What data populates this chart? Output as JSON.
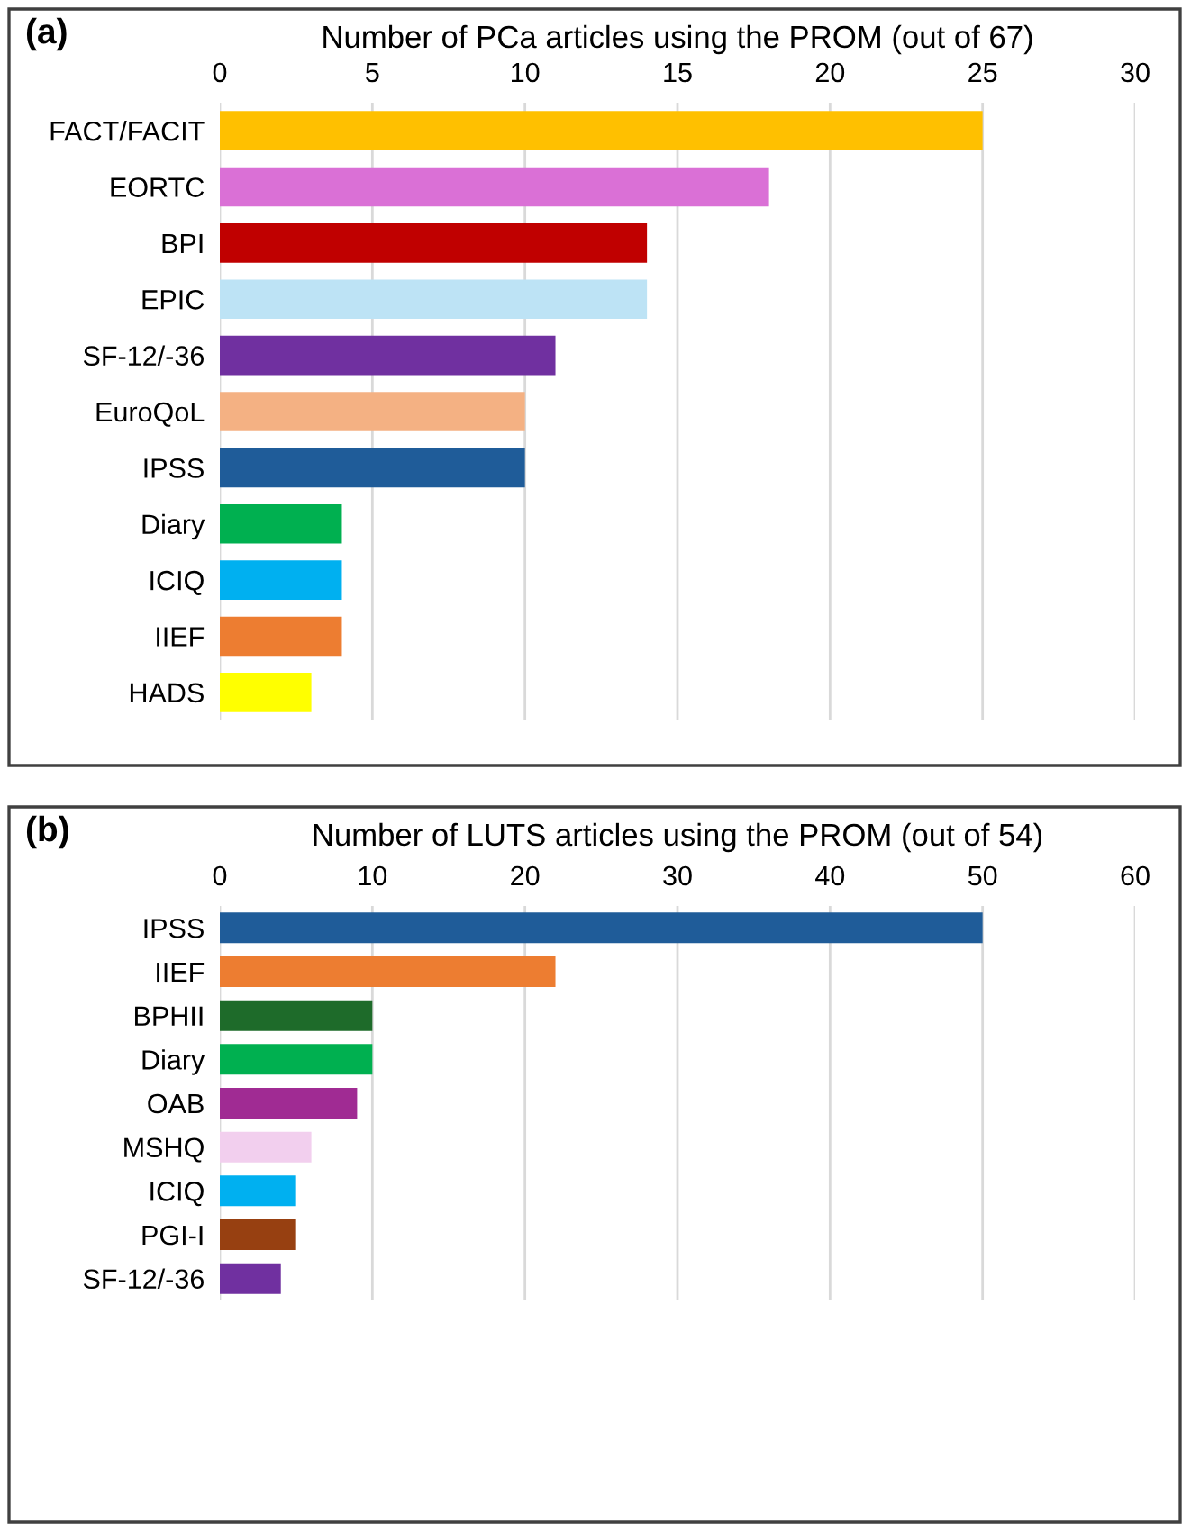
{
  "chart_data": [
    {
      "type": "bar",
      "orientation": "horizontal",
      "title": "Number of PCa articles using the PROM (out of 67)",
      "annotations": [
        "(a)"
      ],
      "categories": [
        "FACT/FACIT",
        "EORTC",
        "BPI",
        "EPIC",
        "SF-12/-36",
        "EuroQoL",
        "IPSS",
        "Diary",
        "ICIQ",
        "IIEF",
        "HADS"
      ],
      "values": [
        25,
        18,
        14,
        14,
        11,
        10,
        10,
        4,
        4,
        4,
        3
      ],
      "colors": [
        "#ffc000",
        "#da70d6",
        "#c00000",
        "#bde3f5",
        "#7030a0",
        "#f4b183",
        "#1f5c99",
        "#00b050",
        "#00b0f0",
        "#ed7d31",
        "#ffff00"
      ],
      "xlim": [
        0,
        30
      ],
      "xticks": [
        0,
        5,
        10,
        15,
        20,
        25,
        30
      ],
      "grid": "x",
      "legend": false
    },
    {
      "type": "bar",
      "orientation": "horizontal",
      "title": "Number of LUTS articles using the PROM (out of 54)",
      "annotations": [
        "(b)"
      ],
      "categories": [
        "IPSS",
        "IIEF",
        "BPHII",
        "Diary",
        "OAB",
        "MSHQ",
        "ICIQ",
        "PGI-I",
        "SF-12/-36"
      ],
      "values": [
        50,
        22,
        10,
        10,
        9,
        6,
        5,
        5,
        4
      ],
      "colors": [
        "#1f5c99",
        "#ed7d31",
        "#1e6b2a",
        "#00b050",
        "#a02b93",
        "#f2cfee",
        "#00b0f0",
        "#974011",
        "#7030a0"
      ],
      "xlim": [
        0,
        60
      ],
      "xticks": [
        0,
        10,
        20,
        30,
        40,
        50,
        60
      ],
      "grid": "x",
      "legend": false
    }
  ]
}
